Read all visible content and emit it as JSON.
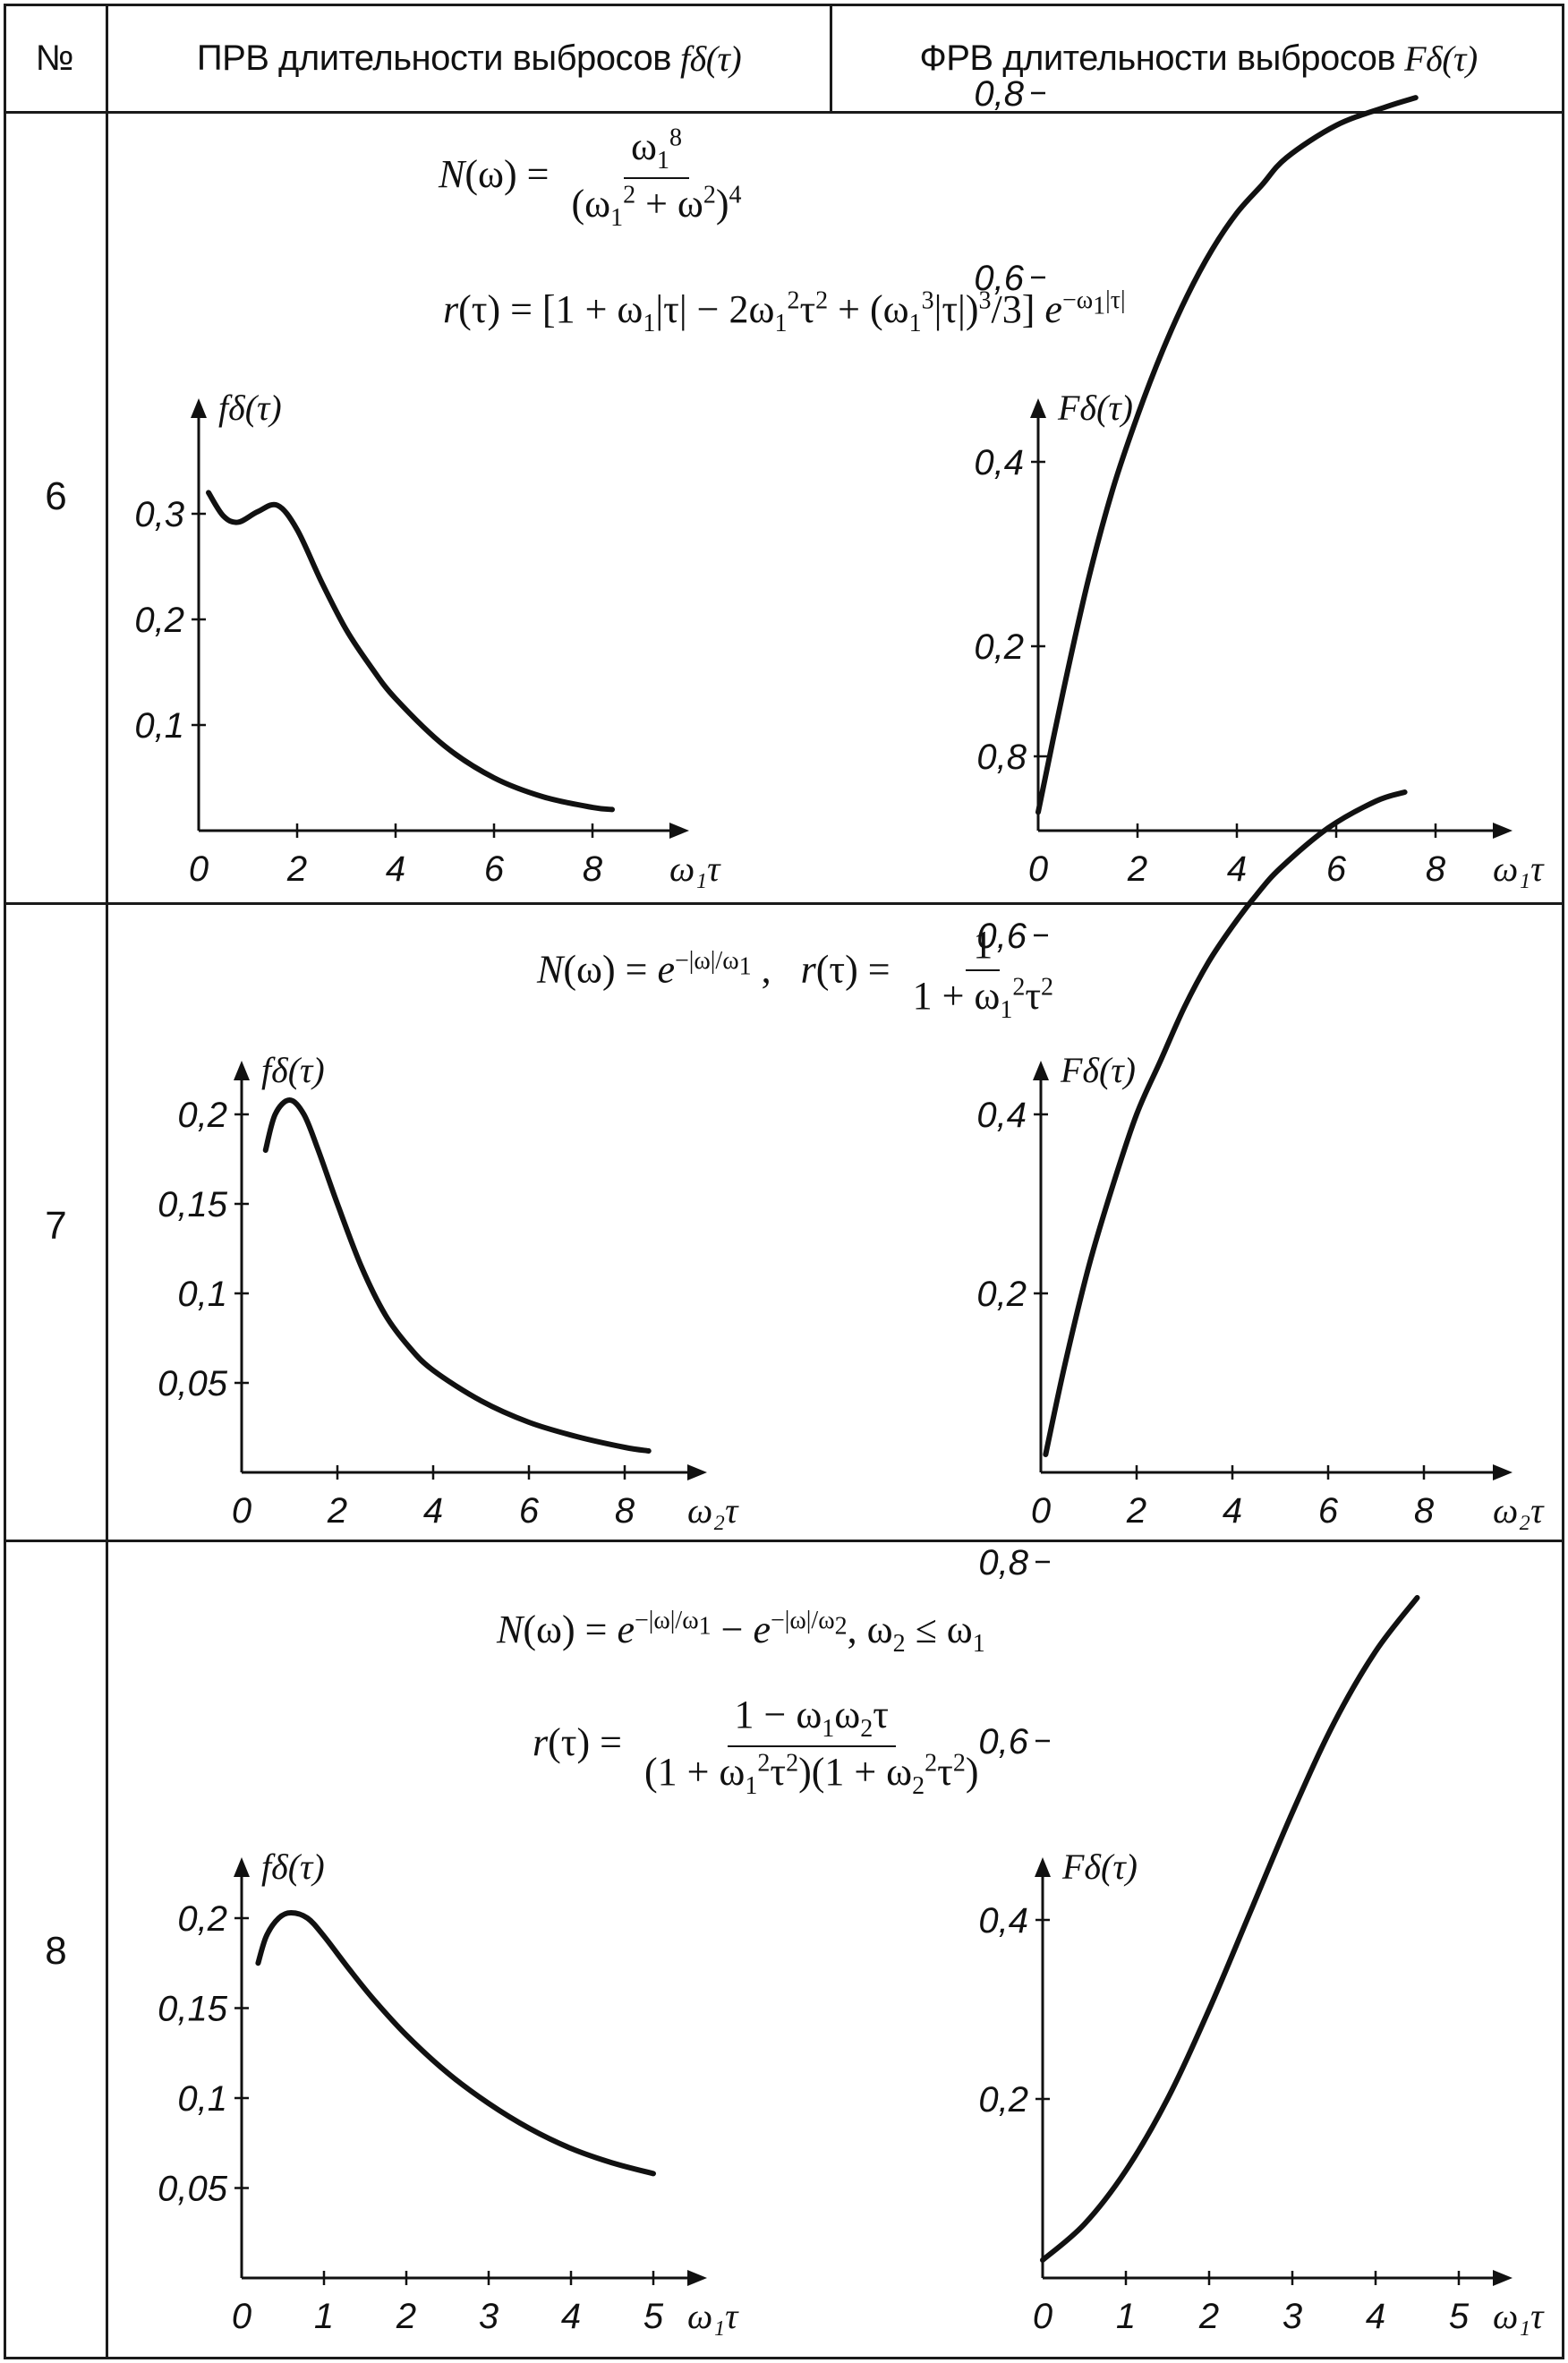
{
  "header": {
    "col_num": "№",
    "col_pdf": "ПРВ длительности выбросов",
    "col_pdf_fn": "fδ(τ)",
    "col_cdf": "ФРВ длительности выбросов",
    "col_cdf_fn": "Fδ(τ)"
  },
  "rows": [
    {
      "num": "6",
      "formula1": "N(ω) = ω₁⁸ / (ω₁² + ω²)⁴",
      "formula2": "r(τ) = [1 + ω₁|τ| − 2ω₁²τ² + (ω₁³|τ|)³/3] e^(−ω₁|τ|)"
    },
    {
      "num": "7",
      "formula1": "N(ω) = e^(−|ω|/ω₁) ,   r(τ) = 1 / (1 + ω₁²τ²)"
    },
    {
      "num": "8",
      "formula1": "N(ω) = e^(−|ω|/ω₁) − e^(−|ω|/ω₂), ω₂ ≤ ω₁",
      "formula2": "r(τ) = (1 − ω₁ω₂τ) / ((1 + ω₁²τ²)(1 + ω₂²τ²))"
    }
  ],
  "chart_data": [
    {
      "id": "pdf6",
      "type": "line",
      "ylabel": "fδ(τ)",
      "xlabel": "ω₁τ",
      "xlim": [
        0,
        9
      ],
      "ylim": [
        0,
        0.35
      ],
      "xticks": [
        0,
        2,
        4,
        6,
        8
      ],
      "yticks": [
        0.1,
        0.2,
        0.3
      ],
      "xtick_labels": [
        "0",
        "2",
        "4",
        "6",
        "8"
      ],
      "ytick_labels": [
        "0,1",
        "0,2",
        "0,3"
      ],
      "x": [
        0.2,
        0.5,
        0.8,
        1.2,
        1.6,
        2.0,
        2.5,
        3.0,
        3.5,
        4.0,
        5.0,
        6.0,
        7.0,
        8.0,
        8.4
      ],
      "y": [
        0.32,
        0.298,
        0.292,
        0.302,
        0.308,
        0.285,
        0.235,
        0.19,
        0.155,
        0.125,
        0.08,
        0.05,
        0.032,
        0.022,
        0.02
      ]
    },
    {
      "id": "cdf6",
      "type": "line",
      "ylabel": "Fδ(τ)",
      "xlabel": "ω₁τ",
      "xlim": [
        0,
        9
      ],
      "ylim": [
        0,
        0.85
      ],
      "xticks": [
        0,
        2,
        4,
        6,
        8
      ],
      "yticks": [
        0.2,
        0.4,
        0.6,
        0.8
      ],
      "xtick_labels": [
        "0",
        "2",
        "4",
        "6",
        "8"
      ],
      "ytick_labels": [
        "0,2",
        "0,4",
        "0,6",
        "0,8"
      ],
      "x": [
        0,
        0.5,
        1,
        1.5,
        2,
        2.5,
        3,
        3.5,
        4,
        4.5,
        5,
        6,
        7,
        7.6
      ],
      "y": [
        0.02,
        0.15,
        0.27,
        0.37,
        0.45,
        0.52,
        0.58,
        0.63,
        0.67,
        0.7,
        0.73,
        0.765,
        0.785,
        0.795
      ]
    },
    {
      "id": "pdf7",
      "type": "line",
      "ylabel": "fδ(τ)",
      "xlabel": "ω₂τ",
      "xlim": [
        0,
        9
      ],
      "ylim": [
        0,
        0.22
      ],
      "xticks": [
        0,
        2,
        4,
        6,
        8
      ],
      "yticks": [
        0.05,
        0.1,
        0.15,
        0.2
      ],
      "xtick_labels": [
        "0",
        "2",
        "4",
        "6",
        "8"
      ],
      "ytick_labels": [
        "0,05",
        "0,1",
        "0,15",
        "0,2"
      ],
      "x": [
        0.5,
        0.7,
        1.0,
        1.3,
        1.6,
        2.0,
        2.5,
        3.0,
        3.5,
        4.0,
        5.0,
        6.0,
        7.0,
        8.0,
        8.5
      ],
      "y": [
        0.18,
        0.2,
        0.208,
        0.2,
        0.18,
        0.15,
        0.115,
        0.088,
        0.07,
        0.057,
        0.04,
        0.028,
        0.02,
        0.014,
        0.012
      ]
    },
    {
      "id": "cdf7",
      "type": "line",
      "ylabel": "Fδ(τ)",
      "xlabel": "ω₂τ",
      "xlim": [
        0,
        9
      ],
      "ylim": [
        0,
        0.85
      ],
      "xticks": [
        0,
        2,
        4,
        6,
        8
      ],
      "yticks": [
        0.2,
        0.4,
        0.6,
        0.8
      ],
      "xtick_labels": [
        "0",
        "2",
        "4",
        "6",
        "8"
      ],
      "ytick_labels": [
        "0,2",
        "0,4",
        "0,6",
        "0,8"
      ],
      "x": [
        0.1,
        0.5,
        1,
        1.5,
        2,
        2.5,
        3,
        3.5,
        4,
        4.5,
        5,
        6,
        7,
        7.6
      ],
      "y": [
        0.02,
        0.12,
        0.23,
        0.32,
        0.4,
        0.46,
        0.52,
        0.57,
        0.61,
        0.645,
        0.675,
        0.72,
        0.75,
        0.76
      ]
    },
    {
      "id": "pdf8",
      "type": "line",
      "ylabel": "fδ(τ)",
      "xlabel": "ω₁τ",
      "xlim": [
        0,
        5.5
      ],
      "ylim": [
        0,
        0.22
      ],
      "xticks": [
        0,
        1,
        2,
        3,
        4,
        5
      ],
      "yticks": [
        0.05,
        0.1,
        0.15,
        0.2
      ],
      "xtick_labels": [
        "0",
        "1",
        "2",
        "3",
        "4",
        "5"
      ],
      "ytick_labels": [
        "0,05",
        "0,1",
        "0,15",
        "0,2"
      ],
      "x": [
        0.2,
        0.3,
        0.45,
        0.6,
        0.8,
        1.0,
        1.3,
        1.6,
        2.0,
        2.5,
        3.0,
        3.5,
        4.0,
        4.5,
        5.0
      ],
      "y": [
        0.175,
        0.19,
        0.2,
        0.203,
        0.2,
        0.19,
        0.172,
        0.155,
        0.135,
        0.114,
        0.097,
        0.083,
        0.072,
        0.064,
        0.058
      ]
    },
    {
      "id": "cdf8",
      "type": "line",
      "ylabel": "Fδ(τ)",
      "xlabel": "ω₁τ",
      "xlim": [
        0,
        5.5
      ],
      "ylim": [
        0,
        0.85
      ],
      "xticks": [
        0,
        1,
        2,
        3,
        4,
        5
      ],
      "yticks": [
        0.2,
        0.4,
        0.6,
        0.8
      ],
      "xtick_labels": [
        "0",
        "1",
        "2",
        "3",
        "4",
        "5"
      ],
      "ytick_labels": [
        "0,2",
        "0,4",
        "0,6",
        "0,8"
      ],
      "x": [
        0,
        0.5,
        1,
        1.5,
        2,
        2.5,
        3,
        3.5,
        4,
        4.5
      ],
      "y": [
        0.02,
        0.06,
        0.12,
        0.2,
        0.3,
        0.41,
        0.52,
        0.62,
        0.7,
        0.76
      ]
    }
  ]
}
